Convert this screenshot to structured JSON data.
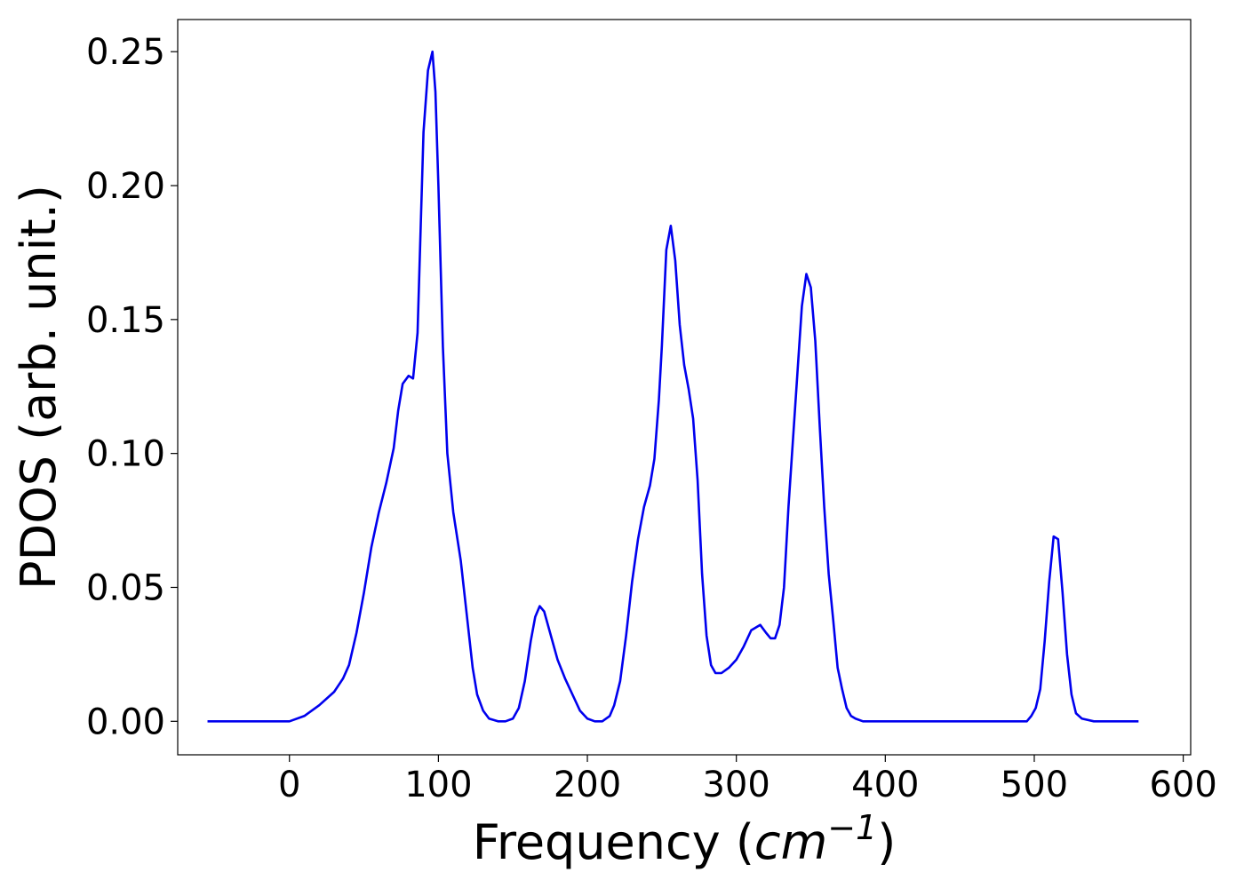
{
  "chart_data": {
    "type": "line",
    "xlabel_text": "Frequency (",
    "xlabel_unit": "cm",
    "xlabel_exp": "−1",
    "xlabel_close": ")",
    "ylabel": "PDOS (arb. unit.)",
    "xlim": [
      -75,
      605
    ],
    "ylim": [
      -0.0125,
      0.262
    ],
    "x_ticks": [
      0,
      100,
      200,
      300,
      400,
      500,
      600
    ],
    "x_tick_labels": [
      "0",
      "100",
      "200",
      "300",
      "400",
      "500",
      "600"
    ],
    "y_ticks": [
      0.0,
      0.05,
      0.1,
      0.15,
      0.2,
      0.25
    ],
    "y_tick_labels": [
      "0.00",
      "0.05",
      "0.10",
      "0.15",
      "0.20",
      "0.25"
    ],
    "grid": false,
    "legend": "none",
    "series": [
      {
        "color": "#0000ee",
        "x": [
          -55,
          0,
          10,
          20,
          30,
          36,
          40,
          45,
          50,
          55,
          60,
          65,
          70,
          73,
          76,
          80,
          83,
          86,
          90,
          93,
          96,
          98,
          100,
          103,
          106,
          110,
          115,
          120,
          123,
          126,
          130,
          134,
          140,
          145,
          150,
          154,
          158,
          162,
          165,
          168,
          171,
          175,
          180,
          185,
          190,
          195,
          200,
          205,
          210,
          215,
          218,
          222,
          226,
          230,
          234,
          238,
          242,
          245,
          248,
          250,
          253,
          256,
          259,
          262,
          265,
          268,
          271,
          274,
          277,
          280,
          283,
          286,
          290,
          295,
          300,
          305,
          310,
          313,
          316,
          320,
          323,
          326,
          329,
          332,
          335,
          338,
          341,
          344,
          347,
          350,
          353,
          356,
          359,
          362,
          365,
          368,
          371,
          374,
          377,
          380,
          385,
          390,
          400,
          450,
          490,
          495,
          498,
          501,
          504,
          507,
          510,
          513,
          516,
          519,
          522,
          525,
          528,
          532,
          540,
          570
        ],
        "y": [
          0.0,
          0.0,
          0.002,
          0.006,
          0.011,
          0.016,
          0.021,
          0.033,
          0.048,
          0.065,
          0.078,
          0.089,
          0.102,
          0.116,
          0.126,
          0.129,
          0.128,
          0.145,
          0.22,
          0.243,
          0.25,
          0.235,
          0.2,
          0.14,
          0.1,
          0.078,
          0.06,
          0.035,
          0.02,
          0.01,
          0.004,
          0.001,
          0.0,
          0.0,
          0.001,
          0.005,
          0.015,
          0.03,
          0.039,
          0.043,
          0.041,
          0.033,
          0.023,
          0.016,
          0.01,
          0.004,
          0.001,
          0.0,
          0.0,
          0.002,
          0.006,
          0.015,
          0.032,
          0.052,
          0.068,
          0.08,
          0.088,
          0.098,
          0.12,
          0.14,
          0.176,
          0.185,
          0.172,
          0.148,
          0.133,
          0.124,
          0.113,
          0.09,
          0.055,
          0.032,
          0.021,
          0.018,
          0.018,
          0.02,
          0.023,
          0.028,
          0.034,
          0.035,
          0.036,
          0.033,
          0.031,
          0.031,
          0.036,
          0.05,
          0.08,
          0.105,
          0.13,
          0.155,
          0.167,
          0.162,
          0.142,
          0.11,
          0.08,
          0.055,
          0.038,
          0.02,
          0.012,
          0.005,
          0.002,
          0.001,
          0.0,
          0.0,
          0.0,
          0.0,
          0.0,
          0.0,
          0.002,
          0.005,
          0.012,
          0.03,
          0.052,
          0.069,
          0.068,
          0.048,
          0.025,
          0.01,
          0.003,
          0.001,
          0.0,
          0.0
        ]
      }
    ]
  }
}
